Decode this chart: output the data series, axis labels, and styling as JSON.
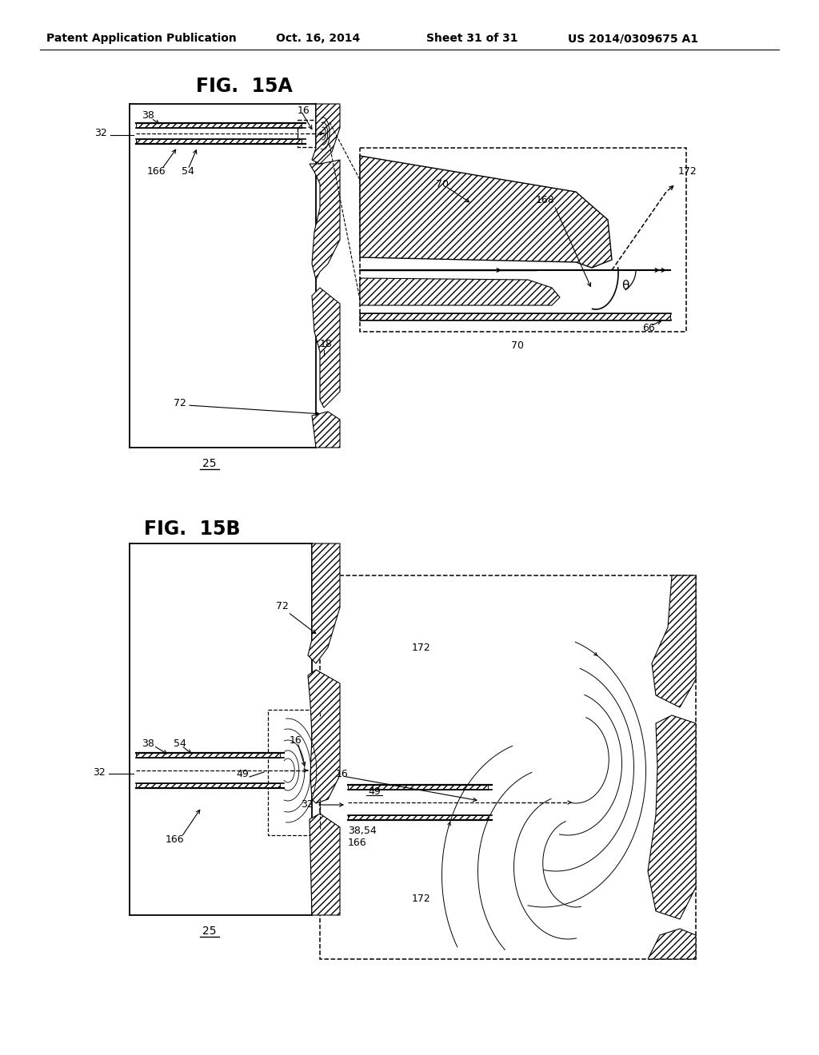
{
  "title_header": "Patent Application Publication",
  "date_header": "Oct. 16, 2014",
  "sheet_header": "Sheet 31 of 31",
  "patent_header": "US 2014/0309675 A1",
  "fig_15a_title": "FIG.  15A",
  "fig_15b_title": "FIG.  15B",
  "bg_color": "#ffffff",
  "font_size_header": 10,
  "font_size_label": 9,
  "font_size_fig": 17
}
